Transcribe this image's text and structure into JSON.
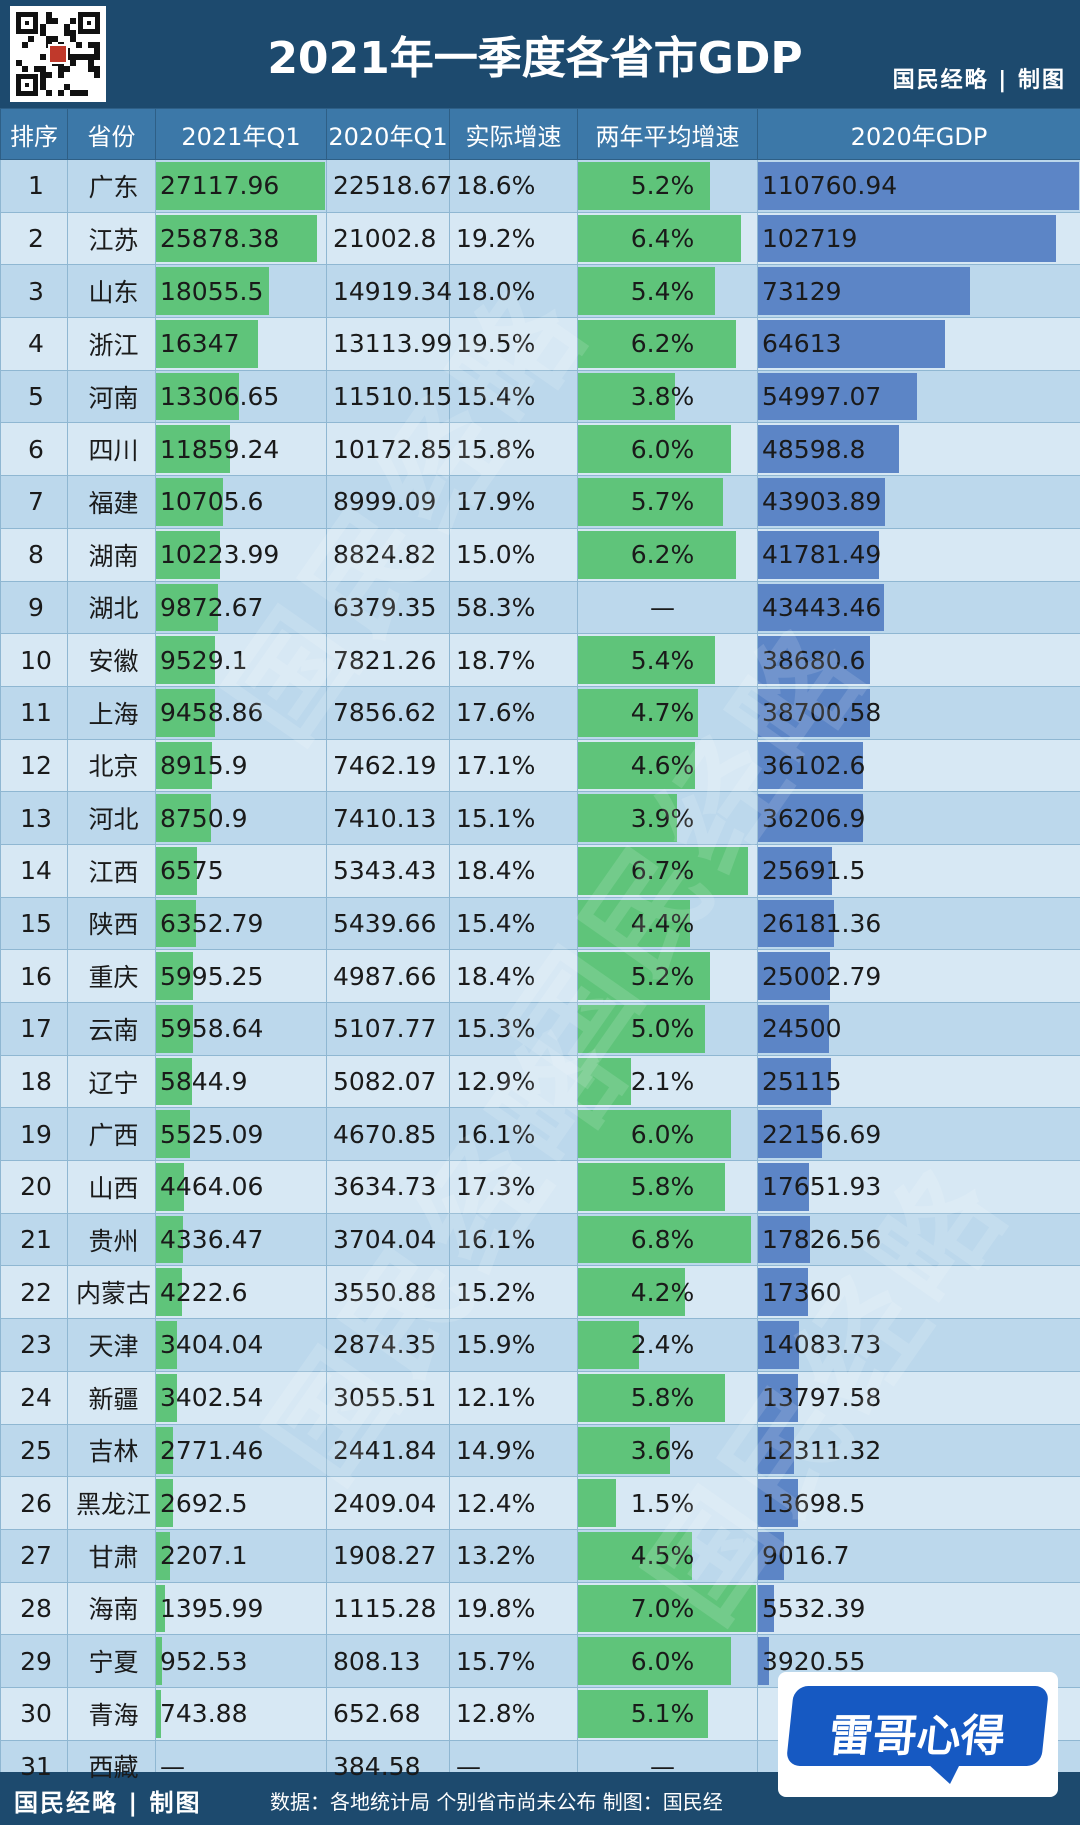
{
  "header": {
    "title": "2021年一季度各省市GDP",
    "brand": "国民经略 | 制图"
  },
  "table": {
    "columns": [
      "排序",
      "省份",
      "2021年Q1",
      "2020年Q1",
      "实际增速",
      "两年平均增速",
      "2020年GDP"
    ],
    "rows": [
      {
        "rank": "1",
        "province": "广东",
        "q1_2021": "27117.96",
        "q1_2020": "22518.67",
        "growth": "18.6%",
        "avg_growth": "5.2%",
        "gdp_2020": "110760.94"
      },
      {
        "rank": "2",
        "province": "江苏",
        "q1_2021": "25878.38",
        "q1_2020": "21002.8",
        "growth": "19.2%",
        "avg_growth": "6.4%",
        "gdp_2020": "102719"
      },
      {
        "rank": "3",
        "province": "山东",
        "q1_2021": "18055.5",
        "q1_2020": "14919.34",
        "growth": "18.0%",
        "avg_growth": "5.4%",
        "gdp_2020": "73129"
      },
      {
        "rank": "4",
        "province": "浙江",
        "q1_2021": "16347",
        "q1_2020": "13113.99",
        "growth": "19.5%",
        "avg_growth": "6.2%",
        "gdp_2020": "64613"
      },
      {
        "rank": "5",
        "province": "河南",
        "q1_2021": "13306.65",
        "q1_2020": "11510.15",
        "growth": "15.4%",
        "avg_growth": "3.8%",
        "gdp_2020": "54997.07"
      },
      {
        "rank": "6",
        "province": "四川",
        "q1_2021": "11859.24",
        "q1_2020": "10172.85",
        "growth": "15.8%",
        "avg_growth": "6.0%",
        "gdp_2020": "48598.8"
      },
      {
        "rank": "7",
        "province": "福建",
        "q1_2021": "10705.6",
        "q1_2020": "8999.09",
        "growth": "17.9%",
        "avg_growth": "5.7%",
        "gdp_2020": "43903.89"
      },
      {
        "rank": "8",
        "province": "湖南",
        "q1_2021": "10223.99",
        "q1_2020": "8824.82",
        "growth": "15.0%",
        "avg_growth": "6.2%",
        "gdp_2020": "41781.49"
      },
      {
        "rank": "9",
        "province": "湖北",
        "q1_2021": "9872.67",
        "q1_2020": "6379.35",
        "growth": "58.3%",
        "avg_growth": "—",
        "gdp_2020": "43443.46"
      },
      {
        "rank": "10",
        "province": "安徽",
        "q1_2021": "9529.1",
        "q1_2020": "7821.26",
        "growth": "18.7%",
        "avg_growth": "5.4%",
        "gdp_2020": "38680.6"
      },
      {
        "rank": "11",
        "province": "上海",
        "q1_2021": "9458.86",
        "q1_2020": "7856.62",
        "growth": "17.6%",
        "avg_growth": "4.7%",
        "gdp_2020": "38700.58"
      },
      {
        "rank": "12",
        "province": "北京",
        "q1_2021": "8915.9",
        "q1_2020": "7462.19",
        "growth": "17.1%",
        "avg_growth": "4.6%",
        "gdp_2020": "36102.6"
      },
      {
        "rank": "13",
        "province": "河北",
        "q1_2021": "8750.9",
        "q1_2020": "7410.13",
        "growth": "15.1%",
        "avg_growth": "3.9%",
        "gdp_2020": "36206.9"
      },
      {
        "rank": "14",
        "province": "江西",
        "q1_2021": "6575",
        "q1_2020": "5343.43",
        "growth": "18.4%",
        "avg_growth": "6.7%",
        "gdp_2020": "25691.5"
      },
      {
        "rank": "15",
        "province": "陕西",
        "q1_2021": "6352.79",
        "q1_2020": "5439.66",
        "growth": "15.4%",
        "avg_growth": "4.4%",
        "gdp_2020": "26181.36"
      },
      {
        "rank": "16",
        "province": "重庆",
        "q1_2021": "5995.25",
        "q1_2020": "4987.66",
        "growth": "18.4%",
        "avg_growth": "5.2%",
        "gdp_2020": "25002.79"
      },
      {
        "rank": "17",
        "province": "云南",
        "q1_2021": "5958.64",
        "q1_2020": "5107.77",
        "growth": "15.3%",
        "avg_growth": "5.0%",
        "gdp_2020": "24500"
      },
      {
        "rank": "18",
        "province": "辽宁",
        "q1_2021": "5844.9",
        "q1_2020": "5082.07",
        "growth": "12.9%",
        "avg_growth": "2.1%",
        "gdp_2020": "25115"
      },
      {
        "rank": "19",
        "province": "广西",
        "q1_2021": "5525.09",
        "q1_2020": "4670.85",
        "growth": "16.1%",
        "avg_growth": "6.0%",
        "gdp_2020": "22156.69"
      },
      {
        "rank": "20",
        "province": "山西",
        "q1_2021": "4464.06",
        "q1_2020": "3634.73",
        "growth": "17.3%",
        "avg_growth": "5.8%",
        "gdp_2020": "17651.93"
      },
      {
        "rank": "21",
        "province": "贵州",
        "q1_2021": "4336.47",
        "q1_2020": "3704.04",
        "growth": "16.1%",
        "avg_growth": "6.8%",
        "gdp_2020": "17826.56"
      },
      {
        "rank": "22",
        "province": "内蒙古",
        "q1_2021": "4222.6",
        "q1_2020": "3550.88",
        "growth": "15.2%",
        "avg_growth": "4.2%",
        "gdp_2020": "17360"
      },
      {
        "rank": "23",
        "province": "天津",
        "q1_2021": "3404.04",
        "q1_2020": "2874.35",
        "growth": "15.9%",
        "avg_growth": "2.4%",
        "gdp_2020": "14083.73"
      },
      {
        "rank": "24",
        "province": "新疆",
        "q1_2021": "3402.54",
        "q1_2020": "3055.51",
        "growth": "12.1%",
        "avg_growth": "5.8%",
        "gdp_2020": "13797.58"
      },
      {
        "rank": "25",
        "province": "吉林",
        "q1_2021": "2771.46",
        "q1_2020": "2441.84",
        "growth": "14.9%",
        "avg_growth": "3.6%",
        "gdp_2020": "12311.32"
      },
      {
        "rank": "26",
        "province": "黑龙江",
        "q1_2021": "2692.5",
        "q1_2020": "2409.04",
        "growth": "12.4%",
        "avg_growth": "1.5%",
        "gdp_2020": "13698.5"
      },
      {
        "rank": "27",
        "province": "甘肃",
        "q1_2021": "2207.1",
        "q1_2020": "1908.27",
        "growth": "13.2%",
        "avg_growth": "4.5%",
        "gdp_2020": "9016.7"
      },
      {
        "rank": "28",
        "province": "海南",
        "q1_2021": "1395.99",
        "q1_2020": "1115.28",
        "growth": "19.8%",
        "avg_growth": "7.0%",
        "gdp_2020": "5532.39"
      },
      {
        "rank": "29",
        "province": "宁夏",
        "q1_2021": "952.53",
        "q1_2020": "808.13",
        "growth": "15.7%",
        "avg_growth": "6.0%",
        "gdp_2020": "3920.55"
      },
      {
        "rank": "30",
        "province": "青海",
        "q1_2021": "743.88",
        "q1_2020": "652.68",
        "growth": "12.8%",
        "avg_growth": "5.1%",
        "gdp_2020": ""
      },
      {
        "rank": "31",
        "province": "西藏",
        "q1_2021": "—",
        "q1_2020": "384.58",
        "growth": "—",
        "avg_growth": "—",
        "gdp_2020": ""
      }
    ]
  },
  "watermark": "国民经略",
  "footer": {
    "brand": "国民经略 | 制图",
    "source": "数据：各地统计局 个别省市尚未公布  制图：国民经"
  },
  "badge": {
    "text": "雷哥心得"
  },
  "colors": {
    "header_bg": "#1d4a6e",
    "header_row": "#3c78a8",
    "row_light": "#d7e8f4",
    "row_dark": "#bcd8ec",
    "bar_green": "#5fc47a",
    "bar_blue": "#5c85c6",
    "badge_blue": "#1659c2"
  }
}
